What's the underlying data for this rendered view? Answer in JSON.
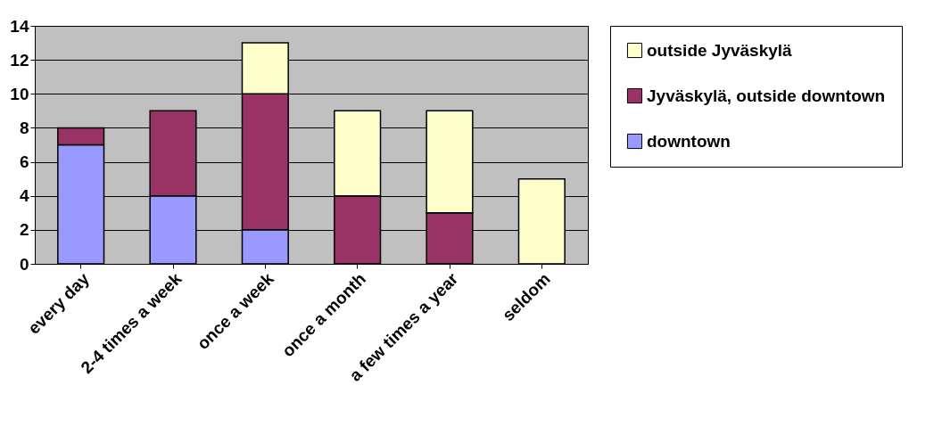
{
  "chart_data": {
    "type": "bar",
    "stacked": true,
    "categories": [
      "every day",
      "2-4 times a week",
      "once a week",
      "once a month",
      "a few times a year",
      "seldom"
    ],
    "series": [
      {
        "name": "downtown",
        "color": "#9999ff",
        "values": [
          7,
          4,
          2,
          0,
          0,
          0
        ]
      },
      {
        "name": "Jyväskylä, outside downtown",
        "color": "#993366",
        "values": [
          1,
          5,
          8,
          4,
          3,
          0
        ]
      },
      {
        "name": "outside Jyväskylä",
        "color": "#ffffcc",
        "values": [
          0,
          0,
          3,
          5,
          6,
          5
        ]
      }
    ],
    "ylim": [
      0,
      14
    ],
    "yticks": [
      0,
      2,
      4,
      6,
      8,
      10,
      12,
      14
    ],
    "grid": "y",
    "legend": "right"
  }
}
